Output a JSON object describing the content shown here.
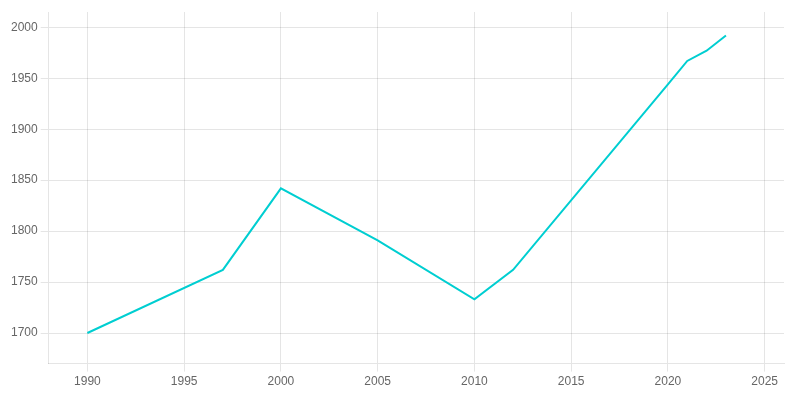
{
  "chart_data": {
    "type": "line",
    "x": [
      1990,
      1997,
      2000,
      2005,
      2010,
      2012,
      2020,
      2021,
      2022,
      2023
    ],
    "values": [
      1700,
      1762,
      1842,
      1791,
      1733,
      1762,
      1944,
      1967,
      1977,
      1992
    ],
    "color": "#00CED1",
    "xlim": [
      1988,
      2026
    ],
    "ylim": [
      1670,
      2015
    ],
    "xticks": [
      1990,
      1995,
      2000,
      2005,
      2010,
      2015,
      2020,
      2025
    ],
    "yticks": [
      1700,
      1750,
      1800,
      1850,
      1900,
      1950,
      2000
    ],
    "grid": true
  }
}
